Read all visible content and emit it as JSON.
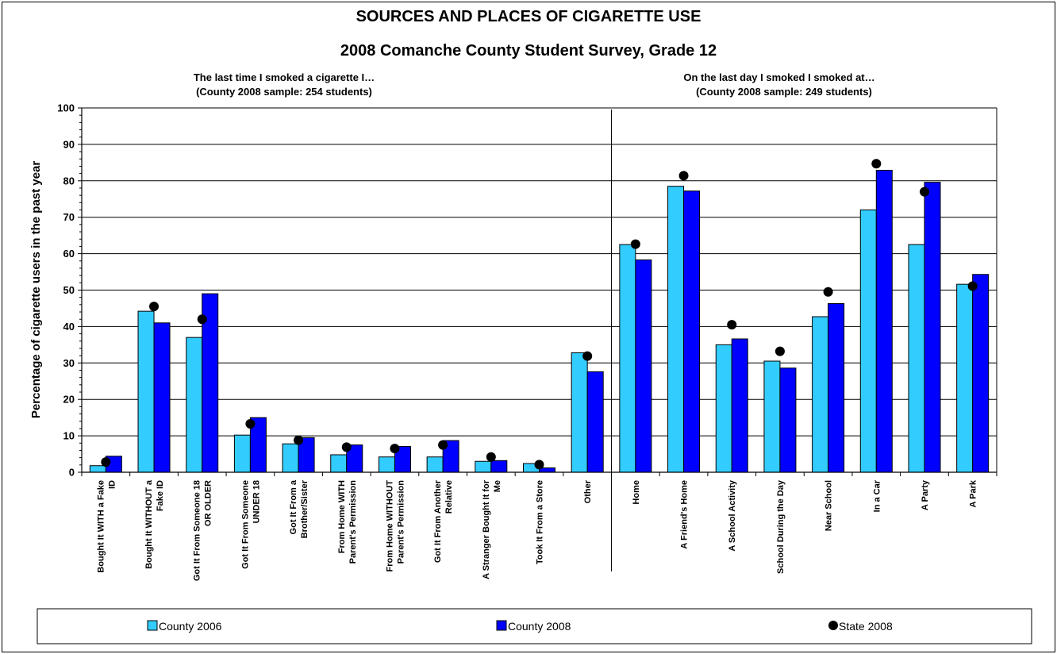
{
  "chart_data": {
    "type": "bar",
    "title": "SOURCES AND PLACES OF CIGARETTE USE",
    "subtitle": "2008 Comanche County Student Survey, Grade 12",
    "panel_left": {
      "line1": "The last time I smoked a cigarette I…",
      "line2": "(County 2008 sample: 254 students)"
    },
    "panel_right": {
      "line1": "On the last day I smoked I smoked at…",
      "line2": "(County 2008 sample: 249 students)"
    },
    "ylabel": "Percentage of cigarette users in the past year",
    "xlabel": "",
    "ylim": [
      0,
      100
    ],
    "yticks": [
      "0",
      "10",
      "20",
      "30",
      "40",
      "50",
      "60",
      "70",
      "80",
      "90",
      "100"
    ],
    "grid": true,
    "legend_position": "bottom",
    "categories": [
      [
        "Bought It WITH a Fake",
        "ID"
      ],
      [
        "Bought It WITHOUT a",
        "Fake ID"
      ],
      [
        "Got It From Someone 18",
        "OR OLDER"
      ],
      [
        "Got It From Someone",
        "UNDER 18"
      ],
      [
        "Got It From a",
        "Brother/Sister"
      ],
      [
        "From Home WITH",
        "Parent's Permission"
      ],
      [
        "From Home WITHOUT",
        "Parent's Permission"
      ],
      [
        "Got It From Another",
        "Relative"
      ],
      [
        "A Stranger Bought It for",
        "Me"
      ],
      [
        "Took It From a Store"
      ],
      [
        "Other"
      ],
      [
        "Home"
      ],
      [
        "A Friend's Home"
      ],
      [
        "A School Activity"
      ],
      [
        "School During the Day"
      ],
      [
        "Near School"
      ],
      [
        "In a Car"
      ],
      [
        "A Party"
      ],
      [
        "A Park"
      ]
    ],
    "series": [
      {
        "name": "County 2006",
        "kind": "bar",
        "color": "#33CCFF",
        "values": [
          1.8,
          44.2,
          37.0,
          10.2,
          7.8,
          4.8,
          4.2,
          4.2,
          3.0,
          2.4,
          32.8,
          62.5,
          78.5,
          35.0,
          30.5,
          42.7,
          72.0,
          62.5,
          51.6
        ]
      },
      {
        "name": "County 2008",
        "kind": "bar",
        "color": "#0000FF",
        "values": [
          4.4,
          41.0,
          49.0,
          15.0,
          9.5,
          7.5,
          7.1,
          8.7,
          3.2,
          1.2,
          27.6,
          58.3,
          77.2,
          36.6,
          28.6,
          46.3,
          82.9,
          79.6,
          54.3
        ]
      },
      {
        "name": "State 2008",
        "kind": "marker",
        "color": "#000000",
        "values": [
          2.8,
          45.5,
          42.0,
          13.3,
          8.8,
          6.9,
          6.5,
          7.5,
          4.2,
          2.1,
          31.9,
          62.6,
          81.4,
          40.5,
          33.2,
          49.5,
          84.7,
          77.0,
          51.1
        ]
      }
    ]
  }
}
